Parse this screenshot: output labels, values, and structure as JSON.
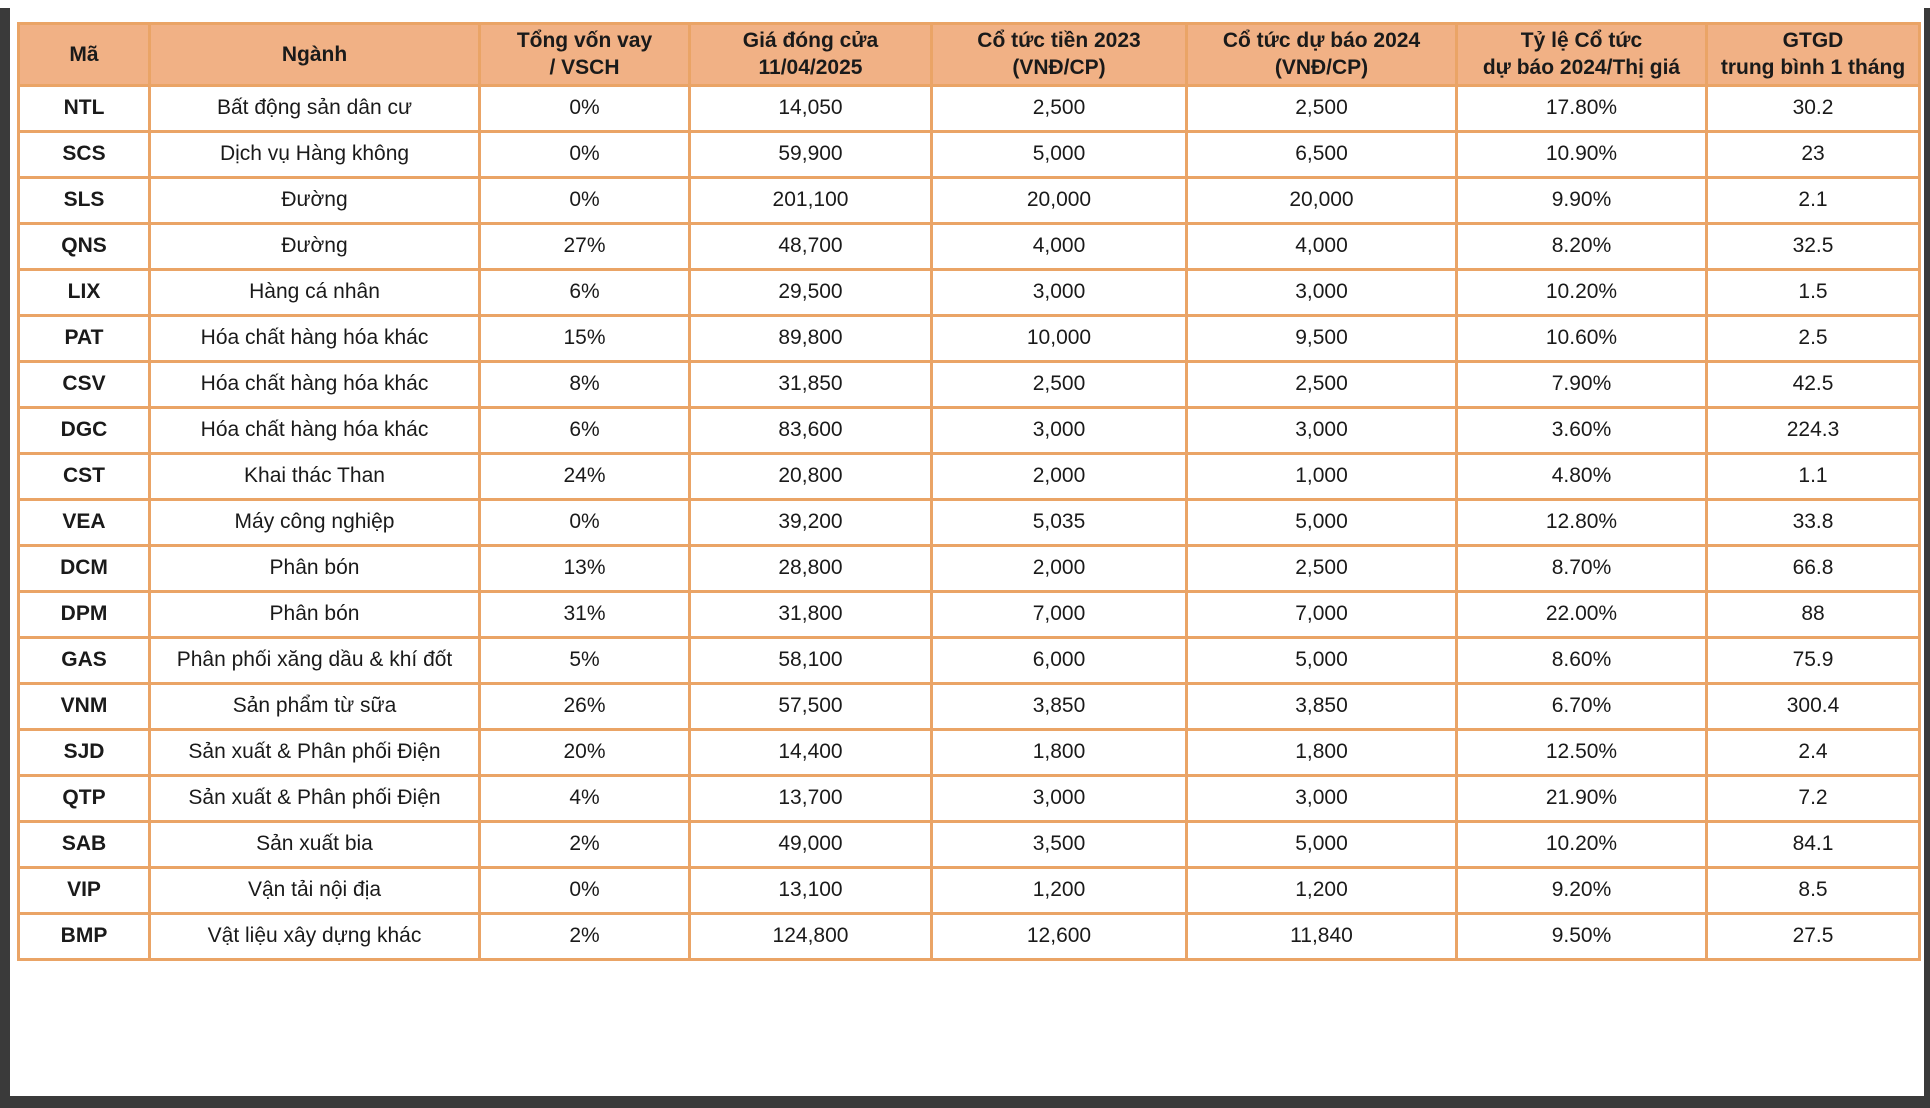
{
  "theme": {
    "header_bg": "#F1B185",
    "border_color": "#EAA466",
    "text_color": "#1a1a1a",
    "edge_color": "#3a3a3a",
    "page_bg": "#ffffff"
  },
  "table": {
    "columns": [
      {
        "key": "ma",
        "label": "Mã"
      },
      {
        "key": "nganh",
        "label": "Ngành"
      },
      {
        "key": "von_vay",
        "label": "Tổng vốn vay\n/ VSCH"
      },
      {
        "key": "gia_dong_cua",
        "label": "Giá đóng cửa\n11/04/2025"
      },
      {
        "key": "co_tuc_2023",
        "label": "Cổ tức tiền 2023\n(VNĐ/CP)"
      },
      {
        "key": "co_tuc_2024",
        "label": "Cổ tức dự báo 2024\n(VNĐ/CP)"
      },
      {
        "key": "ty_le",
        "label": "Tỷ lệ Cổ tức\ndự báo 2024/Thị giá"
      },
      {
        "key": "gtgd",
        "label": "GTGD\ntrung bình 1 tháng"
      }
    ],
    "rows": [
      {
        "ma": "NTL",
        "nganh": "Bất động sản dân cư",
        "von_vay": "0%",
        "gia_dong_cua": "14,050",
        "co_tuc_2023": "2,500",
        "co_tuc_2024": "2,500",
        "ty_le": "17.80%",
        "gtgd": "30.2"
      },
      {
        "ma": "SCS",
        "nganh": "Dịch vụ Hàng không",
        "von_vay": "0%",
        "gia_dong_cua": "59,900",
        "co_tuc_2023": "5,000",
        "co_tuc_2024": "6,500",
        "ty_le": "10.90%",
        "gtgd": "23"
      },
      {
        "ma": "SLS",
        "nganh": "Đường",
        "von_vay": "0%",
        "gia_dong_cua": "201,100",
        "co_tuc_2023": "20,000",
        "co_tuc_2024": "20,000",
        "ty_le": "9.90%",
        "gtgd": "2.1"
      },
      {
        "ma": "QNS",
        "nganh": "Đường",
        "von_vay": "27%",
        "gia_dong_cua": "48,700",
        "co_tuc_2023": "4,000",
        "co_tuc_2024": "4,000",
        "ty_le": "8.20%",
        "gtgd": "32.5"
      },
      {
        "ma": "LIX",
        "nganh": "Hàng cá nhân",
        "von_vay": "6%",
        "gia_dong_cua": "29,500",
        "co_tuc_2023": "3,000",
        "co_tuc_2024": "3,000",
        "ty_le": "10.20%",
        "gtgd": "1.5"
      },
      {
        "ma": "PAT",
        "nganh": "Hóa chất hàng hóa khác",
        "von_vay": "15%",
        "gia_dong_cua": "89,800",
        "co_tuc_2023": "10,000",
        "co_tuc_2024": "9,500",
        "ty_le": "10.60%",
        "gtgd": "2.5"
      },
      {
        "ma": "CSV",
        "nganh": "Hóa chất hàng hóa khác",
        "von_vay": "8%",
        "gia_dong_cua": "31,850",
        "co_tuc_2023": "2,500",
        "co_tuc_2024": "2,500",
        "ty_le": "7.90%",
        "gtgd": "42.5"
      },
      {
        "ma": "DGC",
        "nganh": "Hóa chất hàng hóa khác",
        "von_vay": "6%",
        "gia_dong_cua": "83,600",
        "co_tuc_2023": "3,000",
        "co_tuc_2024": "3,000",
        "ty_le": "3.60%",
        "gtgd": "224.3"
      },
      {
        "ma": "CST",
        "nganh": "Khai thác Than",
        "von_vay": "24%",
        "gia_dong_cua": "20,800",
        "co_tuc_2023": "2,000",
        "co_tuc_2024": "1,000",
        "ty_le": "4.80%",
        "gtgd": "1.1"
      },
      {
        "ma": "VEA",
        "nganh": "Máy công nghiệp",
        "von_vay": "0%",
        "gia_dong_cua": "39,200",
        "co_tuc_2023": "5,035",
        "co_tuc_2024": "5,000",
        "ty_le": "12.80%",
        "gtgd": "33.8"
      },
      {
        "ma": "DCM",
        "nganh": "Phân bón",
        "von_vay": "13%",
        "gia_dong_cua": "28,800",
        "co_tuc_2023": "2,000",
        "co_tuc_2024": "2,500",
        "ty_le": "8.70%",
        "gtgd": "66.8"
      },
      {
        "ma": "DPM",
        "nganh": "Phân bón",
        "von_vay": "31%",
        "gia_dong_cua": "31,800",
        "co_tuc_2023": "7,000",
        "co_tuc_2024": "7,000",
        "ty_le": "22.00%",
        "gtgd": "88"
      },
      {
        "ma": "GAS",
        "nganh": "Phân phối xăng dầu & khí đốt",
        "von_vay": "5%",
        "gia_dong_cua": "58,100",
        "co_tuc_2023": "6,000",
        "co_tuc_2024": "5,000",
        "ty_le": "8.60%",
        "gtgd": "75.9"
      },
      {
        "ma": "VNM",
        "nganh": "Sản phẩm từ sữa",
        "von_vay": "26%",
        "gia_dong_cua": "57,500",
        "co_tuc_2023": "3,850",
        "co_tuc_2024": "3,850",
        "ty_le": "6.70%",
        "gtgd": "300.4"
      },
      {
        "ma": "SJD",
        "nganh": "Sản xuất & Phân phối Điện",
        "von_vay": "20%",
        "gia_dong_cua": "14,400",
        "co_tuc_2023": "1,800",
        "co_tuc_2024": "1,800",
        "ty_le": "12.50%",
        "gtgd": "2.4"
      },
      {
        "ma": "QTP",
        "nganh": "Sản xuất & Phân phối Điện",
        "von_vay": "4%",
        "gia_dong_cua": "13,700",
        "co_tuc_2023": "3,000",
        "co_tuc_2024": "3,000",
        "ty_le": "21.90%",
        "gtgd": "7.2"
      },
      {
        "ma": "SAB",
        "nganh": "Sản xuất bia",
        "von_vay": "2%",
        "gia_dong_cua": "49,000",
        "co_tuc_2023": "3,500",
        "co_tuc_2024": "5,000",
        "ty_le": "10.20%",
        "gtgd": "84.1"
      },
      {
        "ma": "VIP",
        "nganh": "Vận tải nội địa",
        "von_vay": "0%",
        "gia_dong_cua": "13,100",
        "co_tuc_2023": "1,200",
        "co_tuc_2024": "1,200",
        "ty_le": "9.20%",
        "gtgd": "8.5"
      },
      {
        "ma": "BMP",
        "nganh": "Vật liệu xây dựng khác",
        "von_vay": "2%",
        "gia_dong_cua": "124,800",
        "co_tuc_2023": "12,600",
        "co_tuc_2024": "11,840",
        "ty_le": "9.50%",
        "gtgd": "27.5"
      }
    ]
  }
}
